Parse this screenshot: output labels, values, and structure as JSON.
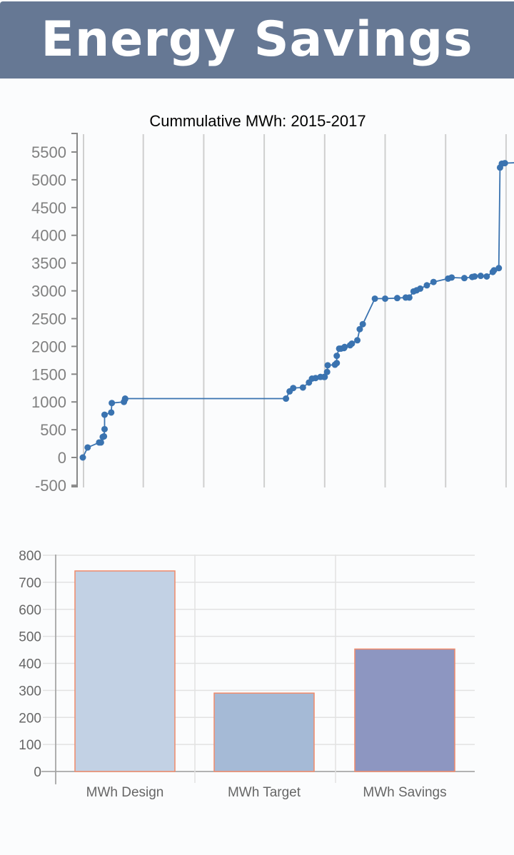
{
  "header": {
    "title": "Energy Savings"
  },
  "colors": {
    "header_bg": "#667894",
    "line": "#3a73b0",
    "axis_text": "#808080",
    "bar_design": "#c2d1e4",
    "bar_target": "#a5bad6",
    "bar_savings": "#8d96c1",
    "bar_border": "#f08a6a"
  },
  "chart_data": [
    {
      "type": "line",
      "title": "Cummulative MWh: 2015-2017",
      "xlabel": "",
      "ylabel": "",
      "ylim": [
        -500,
        5800
      ],
      "yticks": [
        5500,
        5000,
        4500,
        4000,
        3500,
        3000,
        2500,
        2000,
        1500,
        1000,
        500,
        0,
        -500
      ],
      "grid": "vertical",
      "x_gridlines": 8,
      "x": [
        0.0,
        0.08,
        0.27,
        0.3,
        0.33,
        0.35,
        0.36,
        0.36,
        0.47,
        0.48,
        0.68,
        0.7,
        0.7,
        3.36,
        3.42,
        3.48,
        3.64,
        3.74,
        3.79,
        3.85,
        3.93,
        3.99,
        4.0,
        4.04,
        4.05,
        4.17,
        4.2,
        4.2,
        4.24,
        4.27,
        4.32,
        4.33,
        4.42,
        4.45,
        4.54,
        4.58,
        4.63,
        4.83,
        5.0,
        5.2,
        5.34,
        5.4,
        5.47,
        5.52,
        5.58,
        5.69,
        5.8,
        6.04,
        6.1,
        6.31,
        6.44,
        6.48,
        6.58,
        6.68,
        6.78,
        6.8,
        6.88,
        6.9,
        6.93,
        6.98,
        7.2,
        7.38,
        7.5
      ],
      "values": [
        0,
        180,
        270,
        270,
        370,
        380,
        510,
        770,
        810,
        980,
        1000,
        1050,
        1060,
        1060,
        1190,
        1250,
        1260,
        1350,
        1420,
        1430,
        1450,
        1450,
        1450,
        1540,
        1660,
        1670,
        1700,
        1830,
        1960,
        1960,
        1970,
        1990,
        2020,
        2050,
        2110,
        2310,
        2400,
        2860,
        2860,
        2870,
        2880,
        2880,
        2990,
        3010,
        3040,
        3100,
        3160,
        3220,
        3240,
        3230,
        3250,
        3260,
        3270,
        3260,
        3340,
        3370,
        3410,
        5220,
        5290,
        5300,
        5310,
        5320,
        5330
      ]
    },
    {
      "type": "bar",
      "title": "",
      "categories": [
        "MWh Design",
        "MWh Target",
        "MWh Savings"
      ],
      "values": [
        742,
        290,
        453
      ],
      "ylim": [
        0,
        800
      ],
      "yticks": [
        800,
        700,
        600,
        500,
        400,
        300,
        200,
        100,
        0
      ],
      "grid": "both",
      "xlabel": "",
      "ylabel": ""
    }
  ]
}
